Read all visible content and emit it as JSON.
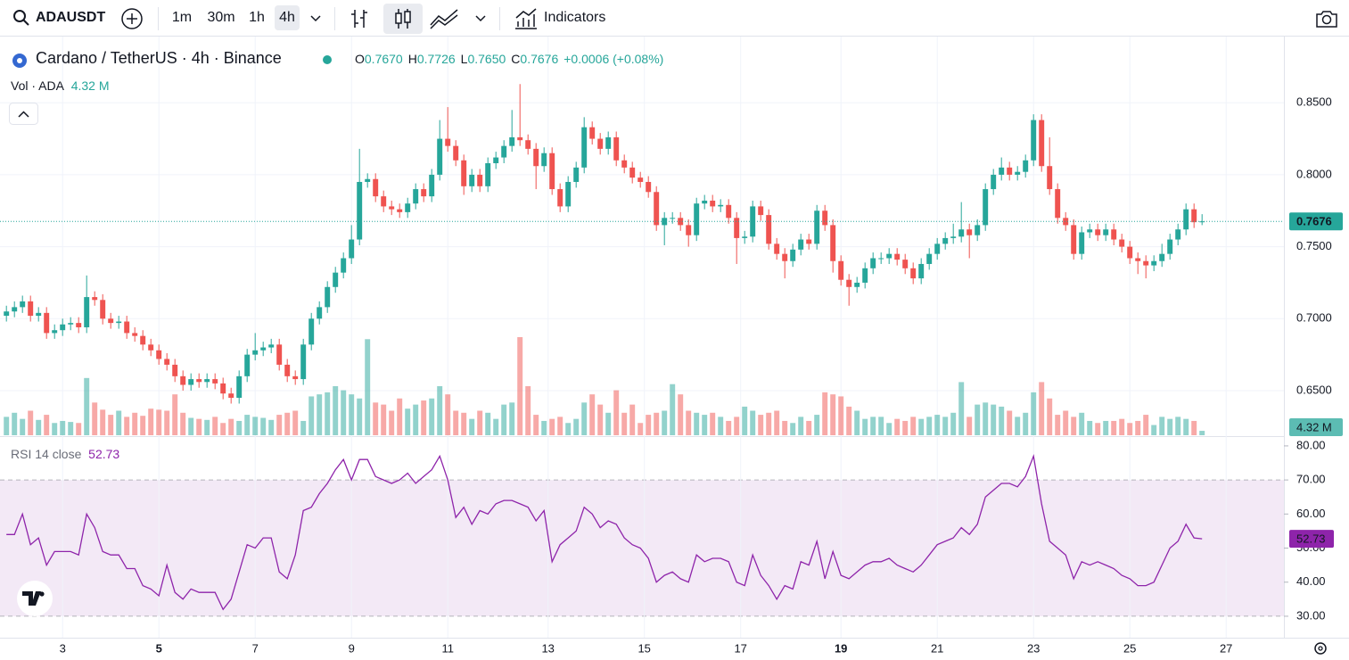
{
  "toolbar": {
    "symbol": "ADAUSDT",
    "intervals": [
      "1m",
      "30m",
      "1h",
      "4h"
    ],
    "active_interval": "4h",
    "indicators": "Indicators"
  },
  "chart_data": {
    "type": "candlestick",
    "title": "Cardano / TetherUS · 4h · Binance",
    "ohlc": [
      {
        "key": "O",
        "value": "0.7670"
      },
      {
        "key": "H",
        "value": "0.7726"
      },
      {
        "key": "L",
        "value": "0.7650"
      },
      {
        "key": "C",
        "value": "0.7676"
      }
    ],
    "change": "+0.0006 (+0.08%)",
    "volume_title": "Vol · ADA",
    "volume_label": "4.32 M",
    "rsi_title": "RSI 14 close",
    "rsi_label": "52.73",
    "last_price": {
      "value": 0.7676,
      "label": "0.7676"
    },
    "colors": {
      "up": "#26a69a",
      "down": "#ef5350",
      "rsi": "#8e24aa"
    },
    "grid": true,
    "xlim": [
      -0.8,
      159.2
    ],
    "xticks": [
      {
        "value": 7,
        "label": "3"
      },
      {
        "value": 19,
        "label": "5"
      },
      {
        "value": 31,
        "label": "7"
      },
      {
        "value": 43,
        "label": "9"
      },
      {
        "value": 55,
        "label": "11"
      },
      {
        "value": 67.5,
        "label": "13"
      },
      {
        "value": 79.5,
        "label": "15"
      },
      {
        "value": 91.5,
        "label": "17"
      },
      {
        "value": 104,
        "label": "19"
      },
      {
        "value": 116,
        "label": "21"
      },
      {
        "value": 128,
        "label": "23"
      },
      {
        "value": 140,
        "label": "25"
      },
      {
        "value": 152,
        "label": "27"
      }
    ],
    "ylim": [
      0.619,
      0.896
    ],
    "yticks": [
      {
        "value": 0.65,
        "label": "0.6500"
      },
      {
        "value": 0.7,
        "label": "0.7000"
      },
      {
        "value": 0.75,
        "label": "0.7500"
      },
      {
        "value": 0.8,
        "label": "0.8000"
      },
      {
        "value": 0.85,
        "label": "0.8500"
      }
    ],
    "candles": {
      "open": [
        0.702,
        0.705,
        0.708,
        0.712,
        0.702,
        0.704,
        0.69,
        0.692,
        0.696,
        0.697,
        0.694,
        0.715,
        0.713,
        0.7,
        0.697,
        0.698,
        0.69,
        0.688,
        0.682,
        0.678,
        0.672,
        0.668,
        0.66,
        0.654,
        0.658,
        0.656,
        0.658,
        0.655,
        0.648,
        0.645,
        0.66,
        0.675,
        0.678,
        0.68,
        0.682,
        0.668,
        0.66,
        0.658,
        0.682,
        0.7,
        0.708,
        0.722,
        0.732,
        0.742,
        0.755,
        0.795,
        0.797,
        0.785,
        0.778,
        0.776,
        0.774,
        0.78,
        0.79,
        0.785,
        0.8,
        0.825,
        0.82,
        0.81,
        0.792,
        0.8,
        0.792,
        0.808,
        0.812,
        0.82,
        0.826,
        0.824,
        0.818,
        0.806,
        0.815,
        0.79,
        0.778,
        0.795,
        0.805,
        0.833,
        0.825,
        0.818,
        0.826,
        0.81,
        0.805,
        0.798,
        0.795,
        0.788,
        0.765,
        0.77,
        0.77,
        0.765,
        0.758,
        0.78,
        0.782,
        0.778,
        0.779,
        0.77,
        0.756,
        0.757,
        0.778,
        0.772,
        0.752,
        0.745,
        0.74,
        0.748,
        0.755,
        0.752,
        0.775,
        0.765,
        0.74,
        0.727,
        0.722,
        0.725,
        0.735,
        0.742,
        0.742,
        0.745,
        0.741,
        0.735,
        0.728,
        0.738,
        0.745,
        0.752,
        0.756,
        0.757,
        0.762,
        0.758,
        0.765,
        0.79,
        0.8,
        0.805,
        0.8,
        0.802,
        0.81,
        0.838,
        0.806,
        0.79,
        0.77,
        0.765,
        0.745,
        0.76,
        0.762,
        0.758,
        0.762,
        0.755,
        0.75,
        0.742,
        0.74,
        0.737,
        0.74,
        0.745,
        0.755,
        0.762,
        0.776,
        0.767
      ],
      "high": [
        0.709,
        0.712,
        0.716,
        0.716,
        0.708,
        0.708,
        0.696,
        0.7,
        0.701,
        0.701,
        0.73,
        0.719,
        0.717,
        0.704,
        0.702,
        0.702,
        0.694,
        0.692,
        0.686,
        0.682,
        0.676,
        0.672,
        0.664,
        0.662,
        0.662,
        0.662,
        0.662,
        0.659,
        0.652,
        0.664,
        0.679,
        0.69,
        0.684,
        0.686,
        0.686,
        0.672,
        0.664,
        0.686,
        0.704,
        0.712,
        0.726,
        0.736,
        0.746,
        0.765,
        0.818,
        0.801,
        0.801,
        0.789,
        0.782,
        0.78,
        0.784,
        0.794,
        0.794,
        0.804,
        0.838,
        0.847,
        0.824,
        0.814,
        0.804,
        0.804,
        0.812,
        0.816,
        0.824,
        0.845,
        0.863,
        0.828,
        0.822,
        0.819,
        0.819,
        0.794,
        0.799,
        0.809,
        0.84,
        0.837,
        0.829,
        0.83,
        0.83,
        0.814,
        0.809,
        0.802,
        0.799,
        0.792,
        0.774,
        0.774,
        0.774,
        0.769,
        0.784,
        0.786,
        0.786,
        0.783,
        0.783,
        0.774,
        0.761,
        0.782,
        0.782,
        0.776,
        0.756,
        0.749,
        0.752,
        0.759,
        0.759,
        0.779,
        0.779,
        0.769,
        0.744,
        0.731,
        0.729,
        0.739,
        0.746,
        0.746,
        0.749,
        0.749,
        0.745,
        0.739,
        0.742,
        0.749,
        0.756,
        0.76,
        0.766,
        0.781,
        0.766,
        0.769,
        0.794,
        0.804,
        0.812,
        0.809,
        0.806,
        0.814,
        0.842,
        0.842,
        0.826,
        0.794,
        0.774,
        0.769,
        0.764,
        0.766,
        0.766,
        0.766,
        0.766,
        0.759,
        0.754,
        0.746,
        0.744,
        0.744,
        0.752,
        0.759,
        0.766,
        0.78,
        0.78,
        0.7726
      ],
      "low": [
        0.698,
        0.701,
        0.704,
        0.698,
        0.698,
        0.686,
        0.686,
        0.688,
        0.692,
        0.69,
        0.69,
        0.709,
        0.696,
        0.693,
        0.693,
        0.686,
        0.684,
        0.678,
        0.674,
        0.668,
        0.664,
        0.656,
        0.65,
        0.65,
        0.652,
        0.652,
        0.651,
        0.644,
        0.641,
        0.641,
        0.656,
        0.671,
        0.674,
        0.676,
        0.664,
        0.656,
        0.654,
        0.654,
        0.678,
        0.696,
        0.704,
        0.718,
        0.728,
        0.738,
        0.751,
        0.791,
        0.781,
        0.774,
        0.772,
        0.77,
        0.77,
        0.776,
        0.781,
        0.781,
        0.796,
        0.816,
        0.806,
        0.786,
        0.788,
        0.788,
        0.788,
        0.804,
        0.808,
        0.816,
        0.82,
        0.814,
        0.79,
        0.802,
        0.786,
        0.774,
        0.774,
        0.791,
        0.801,
        0.821,
        0.814,
        0.814,
        0.806,
        0.801,
        0.794,
        0.791,
        0.784,
        0.761,
        0.751,
        0.766,
        0.761,
        0.75,
        0.754,
        0.776,
        0.774,
        0.774,
        0.766,
        0.738,
        0.752,
        0.753,
        0.768,
        0.748,
        0.741,
        0.728,
        0.736,
        0.744,
        0.748,
        0.748,
        0.761,
        0.732,
        0.723,
        0.709,
        0.718,
        0.721,
        0.731,
        0.738,
        0.738,
        0.737,
        0.731,
        0.724,
        0.724,
        0.734,
        0.741,
        0.748,
        0.752,
        0.753,
        0.742,
        0.754,
        0.761,
        0.786,
        0.796,
        0.796,
        0.796,
        0.798,
        0.806,
        0.802,
        0.786,
        0.766,
        0.761,
        0.741,
        0.741,
        0.756,
        0.754,
        0.754,
        0.751,
        0.746,
        0.738,
        0.731,
        0.728,
        0.733,
        0.736,
        0.741,
        0.751,
        0.758,
        0.763,
        0.765
      ],
      "close": [
        0.705,
        0.708,
        0.712,
        0.702,
        0.704,
        0.69,
        0.692,
        0.696,
        0.697,
        0.694,
        0.715,
        0.713,
        0.7,
        0.697,
        0.698,
        0.69,
        0.688,
        0.682,
        0.678,
        0.672,
        0.668,
        0.66,
        0.654,
        0.658,
        0.656,
        0.658,
        0.655,
        0.648,
        0.645,
        0.66,
        0.675,
        0.678,
        0.68,
        0.682,
        0.668,
        0.66,
        0.658,
        0.682,
        0.7,
        0.708,
        0.722,
        0.732,
        0.742,
        0.755,
        0.795,
        0.797,
        0.785,
        0.778,
        0.776,
        0.774,
        0.78,
        0.79,
        0.785,
        0.8,
        0.825,
        0.82,
        0.81,
        0.792,
        0.8,
        0.792,
        0.808,
        0.812,
        0.82,
        0.826,
        0.824,
        0.818,
        0.806,
        0.815,
        0.79,
        0.778,
        0.795,
        0.805,
        0.833,
        0.825,
        0.818,
        0.826,
        0.81,
        0.805,
        0.798,
        0.795,
        0.788,
        0.765,
        0.77,
        0.77,
        0.765,
        0.758,
        0.78,
        0.782,
        0.778,
        0.779,
        0.77,
        0.756,
        0.757,
        0.778,
        0.772,
        0.752,
        0.745,
        0.74,
        0.748,
        0.755,
        0.752,
        0.775,
        0.765,
        0.74,
        0.727,
        0.722,
        0.725,
        0.735,
        0.742,
        0.742,
        0.745,
        0.741,
        0.735,
        0.728,
        0.738,
        0.745,
        0.752,
        0.756,
        0.757,
        0.762,
        0.758,
        0.765,
        0.79,
        0.8,
        0.805,
        0.8,
        0.802,
        0.81,
        0.838,
        0.806,
        0.79,
        0.77,
        0.765,
        0.745,
        0.76,
        0.762,
        0.758,
        0.762,
        0.755,
        0.75,
        0.742,
        0.74,
        0.737,
        0.74,
        0.745,
        0.755,
        0.762,
        0.776,
        0.767,
        0.7676
      ]
    },
    "volume": [
      18,
      22,
      16,
      24,
      15,
      20,
      12,
      14,
      13,
      12,
      56,
      32,
      25,
      20,
      24,
      18,
      22,
      19,
      26,
      25,
      24,
      40,
      22,
      17,
      16,
      15,
      18,
      12,
      16,
      14,
      20,
      18,
      17,
      15,
      20,
      22,
      24,
      14,
      38,
      40,
      42,
      48,
      44,
      40,
      36,
      94,
      32,
      30,
      24,
      36,
      26,
      30,
      34,
      36,
      48,
      40,
      24,
      22,
      16,
      24,
      22,
      16,
      30,
      32,
      96,
      48,
      20,
      14,
      16,
      18,
      12,
      16,
      32,
      40,
      30,
      22,
      44,
      22,
      30,
      12,
      20,
      22,
      24,
      50,
      40,
      24,
      22,
      20,
      22,
      18,
      14,
      18,
      28,
      24,
      20,
      22,
      24,
      14,
      12,
      18,
      14,
      20,
      42,
      40,
      38,
      28,
      24,
      16,
      18,
      18,
      12,
      16,
      14,
      18,
      16,
      18,
      20,
      18,
      22,
      52,
      18,
      30,
      32,
      30,
      28,
      24,
      18,
      22,
      42,
      52,
      36,
      20,
      24,
      18,
      22,
      14,
      12,
      14,
      14,
      16,
      12,
      14,
      20,
      10,
      18,
      16,
      18,
      16,
      14,
      4.32
    ],
    "rsi": [
      54,
      54,
      60,
      51,
      53,
      45,
      49,
      49,
      49,
      48,
      60,
      56,
      49,
      48,
      48,
      44,
      44,
      39,
      38,
      36,
      45,
      37,
      35,
      38,
      37,
      37,
      37,
      32,
      35,
      43,
      51,
      50,
      53,
      53,
      43,
      41,
      48,
      61,
      62,
      66,
      69,
      73,
      76,
      70,
      76,
      76,
      71,
      70,
      69,
      70,
      72,
      69,
      71,
      73,
      77,
      70,
      59,
      62,
      57,
      61,
      60,
      63,
      64,
      64,
      63,
      62,
      58,
      61,
      46,
      51,
      53,
      55,
      62,
      60,
      56,
      58,
      57,
      53,
      51,
      50,
      47,
      40,
      42,
      43,
      41,
      40,
      48,
      46,
      47,
      47,
      46,
      40,
      39,
      48,
      42,
      39,
      35,
      39,
      38,
      46,
      45,
      52,
      41,
      49,
      42,
      41,
      43,
      45,
      46,
      46,
      47,
      45,
      44,
      43,
      45,
      48,
      51,
      52,
      53,
      56,
      54,
      57,
      65,
      67,
      69,
      69,
      68,
      71,
      77,
      63,
      52,
      50,
      48,
      41,
      46,
      45,
      46,
      45,
      44,
      42,
      41,
      39,
      39,
      40,
      45,
      50,
      52,
      57,
      53,
      52.73
    ],
    "rsi_lim": [
      23.7,
      82.6
    ],
    "rsi_ticks": [
      {
        "value": 30,
        "label": "30.00"
      },
      {
        "value": 40,
        "label": "40.00"
      },
      {
        "value": 50,
        "label": "50.00"
      },
      {
        "value": 60,
        "label": "60.00"
      },
      {
        "value": 70,
        "label": "70.00"
      },
      {
        "value": 80,
        "label": "80.00"
      }
    ],
    "rsi_band": [
      30,
      70
    ]
  }
}
